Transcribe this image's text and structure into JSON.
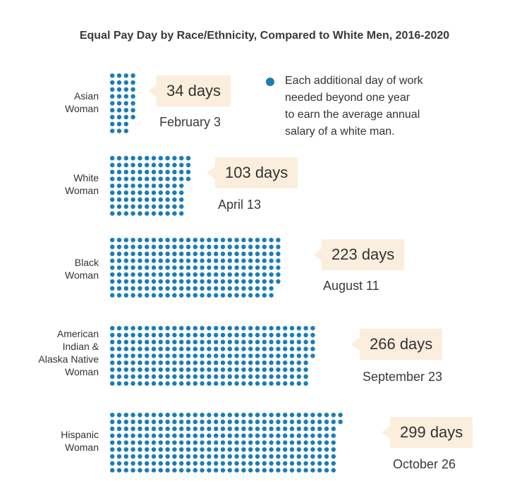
{
  "chart_data": {
    "type": "dot-matrix",
    "title": "Equal Pay Day by Race/Ethnicity, Compared to White Men,  2016-2020",
    "dot_color": "#1a7db6",
    "legend": {
      "label": "Each additional day of work needed beyond one year to earn the average annual salary of a white man.",
      "lines": [
        "Each additional day of work",
        "needed beyond one year",
        "to earn the average annual",
        "salary of a white man."
      ]
    },
    "groups": [
      {
        "name": "Asian Woman",
        "label_lines": [
          "Asian",
          "Woman"
        ],
        "days": 34,
        "days_label": "34 days",
        "date": "February 3"
      },
      {
        "name": "White Woman",
        "label_lines": [
          "White",
          "Woman"
        ],
        "days": 103,
        "days_label": "103 days",
        "date": "April 13"
      },
      {
        "name": "Black Woman",
        "label_lines": [
          "Black",
          "Woman"
        ],
        "days": 223,
        "days_label": "223 days",
        "date": "August 11"
      },
      {
        "name": "American Indian & Alaska Native Woman",
        "label_lines": [
          "American",
          "Indian &",
          "Alaska Native",
          "Woman"
        ],
        "days": 266,
        "days_label": "266 days",
        "date": "September 23"
      },
      {
        "name": "Hispanic Woman",
        "label_lines": [
          "Hispanic",
          "Woman"
        ],
        "days": 299,
        "days_label": "299 days",
        "date": "October 26"
      }
    ]
  }
}
